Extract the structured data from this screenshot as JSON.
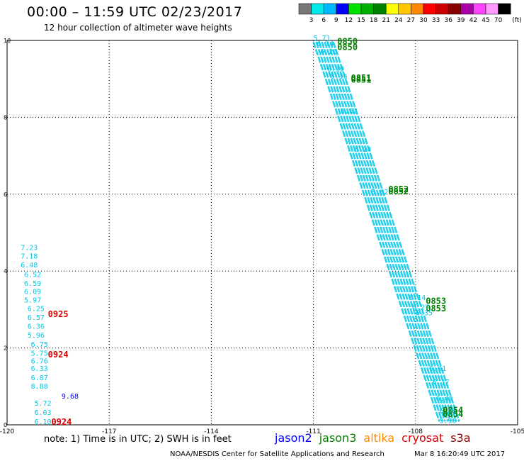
{
  "header": {
    "title": "00:00 – 11:59 UTC 02/23/2017",
    "subtitle": "12 hour collection of altimeter wave heights"
  },
  "colorbar": {
    "unit": "(ft)",
    "labels": [
      "3",
      "6",
      "9",
      "12",
      "15",
      "18",
      "21",
      "24",
      "27",
      "30",
      "33",
      "36",
      "39",
      "42",
      "45",
      "70"
    ],
    "colors": [
      "#777777",
      "#00e8e8",
      "#00b8ff",
      "#0000ff",
      "#00e000",
      "#00b000",
      "#008000",
      "#ffff00",
      "#ffc800",
      "#ff8800",
      "#ff0000",
      "#cc0000",
      "#880000",
      "#aa00aa",
      "#ff44ff",
      "#ff99ff",
      "#000000"
    ]
  },
  "chart_data": {
    "type": "scatter",
    "title": "00:00 – 11:59 UTC 02/23/2017",
    "subtitle": "12 hour collection of altimeter wave heights",
    "xlim": [
      -120,
      -105
    ],
    "ylim": [
      0,
      10
    ],
    "x_ticks": [
      "-120",
      "-117",
      "-114",
      "-111",
      "-108",
      "-105"
    ],
    "y_ticks": [
      "0",
      "2",
      "4",
      "6",
      "8",
      "10"
    ],
    "grid": true,
    "series": [
      {
        "name": "jason2",
        "color": "#0000ff",
        "points": [
          {
            "x": -118.4,
            "y": 0.68,
            "label": "9.68"
          }
        ]
      },
      {
        "name": "jason3",
        "color": "#008000",
        "points": [
          {
            "x": -110.3,
            "y": 9.9,
            "label": "0850"
          },
          {
            "x": -110.3,
            "y": 9.75,
            "label": "0850"
          },
          {
            "x": -109.9,
            "y": 8.95,
            "label": "0851"
          },
          {
            "x": -109.9,
            "y": 8.9,
            "label": "0851"
          },
          {
            "x": -108.8,
            "y": 6.05,
            "label": "0852"
          },
          {
            "x": -108.8,
            "y": 6.0,
            "label": "0852"
          },
          {
            "x": -107.7,
            "y": 3.15,
            "label": "0853"
          },
          {
            "x": -107.7,
            "y": 2.95,
            "label": "0853"
          },
          {
            "x": -107.2,
            "y": 0.3,
            "label": "0854"
          },
          {
            "x": -107.2,
            "y": 0.2,
            "label": "0854"
          }
        ]
      },
      {
        "name": "cryosat",
        "color": "#dd0000",
        "points": [
          {
            "x": -118.8,
            "y": 2.8,
            "label": "0925"
          },
          {
            "x": -118.8,
            "y": 1.75,
            "label": "0924"
          },
          {
            "x": -118.7,
            "y": 0.0,
            "label": "0924"
          }
        ]
      },
      {
        "name": "swh_west_track",
        "color": "#00c8e8",
        "points": [
          {
            "x": -119.6,
            "y": 4.55,
            "label": "7.23"
          },
          {
            "x": -119.6,
            "y": 4.33,
            "label": "7.18"
          },
          {
            "x": -119.6,
            "y": 4.1,
            "label": "6.48"
          },
          {
            "x": -119.5,
            "y": 3.85,
            "label": "6.52"
          },
          {
            "x": -119.5,
            "y": 3.62,
            "label": "6.59"
          },
          {
            "x": -119.5,
            "y": 3.4,
            "label": "6.09"
          },
          {
            "x": -119.5,
            "y": 3.18,
            "label": "5.97"
          },
          {
            "x": -119.4,
            "y": 2.96,
            "label": "6.25"
          },
          {
            "x": -119.4,
            "y": 2.73,
            "label": "6.57"
          },
          {
            "x": -119.4,
            "y": 2.5,
            "label": "6.36"
          },
          {
            "x": -119.4,
            "y": 2.27,
            "label": "5.96"
          },
          {
            "x": -119.3,
            "y": 2.03,
            "label": "6.75"
          },
          {
            "x": -119.3,
            "y": 1.8,
            "label": "5.75"
          },
          {
            "x": -119.3,
            "y": 1.6,
            "label": "6.76"
          },
          {
            "x": -119.3,
            "y": 1.4,
            "label": "6.33"
          },
          {
            "x": -119.3,
            "y": 1.16,
            "label": "6.87"
          },
          {
            "x": -119.3,
            "y": 0.94,
            "label": "8.88"
          },
          {
            "x": -119.2,
            "y": 0.5,
            "label": "5.72"
          },
          {
            "x": -119.2,
            "y": 0.26,
            "label": "6.03"
          },
          {
            "x": -119.2,
            "y": 0.02,
            "label": "6.10"
          }
        ]
      },
      {
        "name": "swh_diagonal_track",
        "color": "#00c8e8",
        "points": [
          {
            "x": -111.0,
            "y": 10.0,
            "label": "5.71"
          },
          {
            "x": -110.9,
            "y": 9.85,
            "label": "6.14"
          },
          {
            "x": -110.8,
            "y": 9.65,
            "label": "6.26"
          },
          {
            "x": -110.6,
            "y": 9.2,
            "label": "6.19"
          },
          {
            "x": -110.5,
            "y": 9.0,
            "label": "6.36"
          },
          {
            "x": -110.2,
            "y": 8.1,
            "label": "6.62"
          },
          {
            "x": -109.8,
            "y": 7.1,
            "label": "6.14"
          },
          {
            "x": -109.3,
            "y": 6.0,
            "label": "5.82"
          },
          {
            "x": -108.2,
            "y": 3.25,
            "label": "6.14"
          },
          {
            "x": -108.1,
            "y": 3.0,
            "label": "6.27"
          },
          {
            "x": -108.0,
            "y": 2.85,
            "label": "6.35"
          },
          {
            "x": -107.6,
            "y": 1.4,
            "label": "6.01"
          },
          {
            "x": -107.5,
            "y": 1.05,
            "label": "6.17"
          },
          {
            "x": -107.4,
            "y": 0.62,
            "label": "6.42"
          },
          {
            "x": -107.3,
            "y": 0.3,
            "label": "6.06"
          },
          {
            "x": -107.3,
            "y": 0.05,
            "label": "5.98"
          }
        ]
      }
    ]
  },
  "footer": {
    "note": "note:  1) Time is in UTC;  2) SWH is in feet",
    "satellites": [
      {
        "name": "jason2",
        "color": "#0000ff"
      },
      {
        "name": "jason3",
        "color": "#008000"
      },
      {
        "name": "altika",
        "color": "#ff8800"
      },
      {
        "name": "cryosat",
        "color": "#dd0000"
      },
      {
        "name": "s3a",
        "color": "#880000"
      }
    ],
    "credit": "NOAA/NESDIS Center for Satellite Applications and Research",
    "timestamp": "Mar  8 16:20:49 UTC 2017"
  }
}
